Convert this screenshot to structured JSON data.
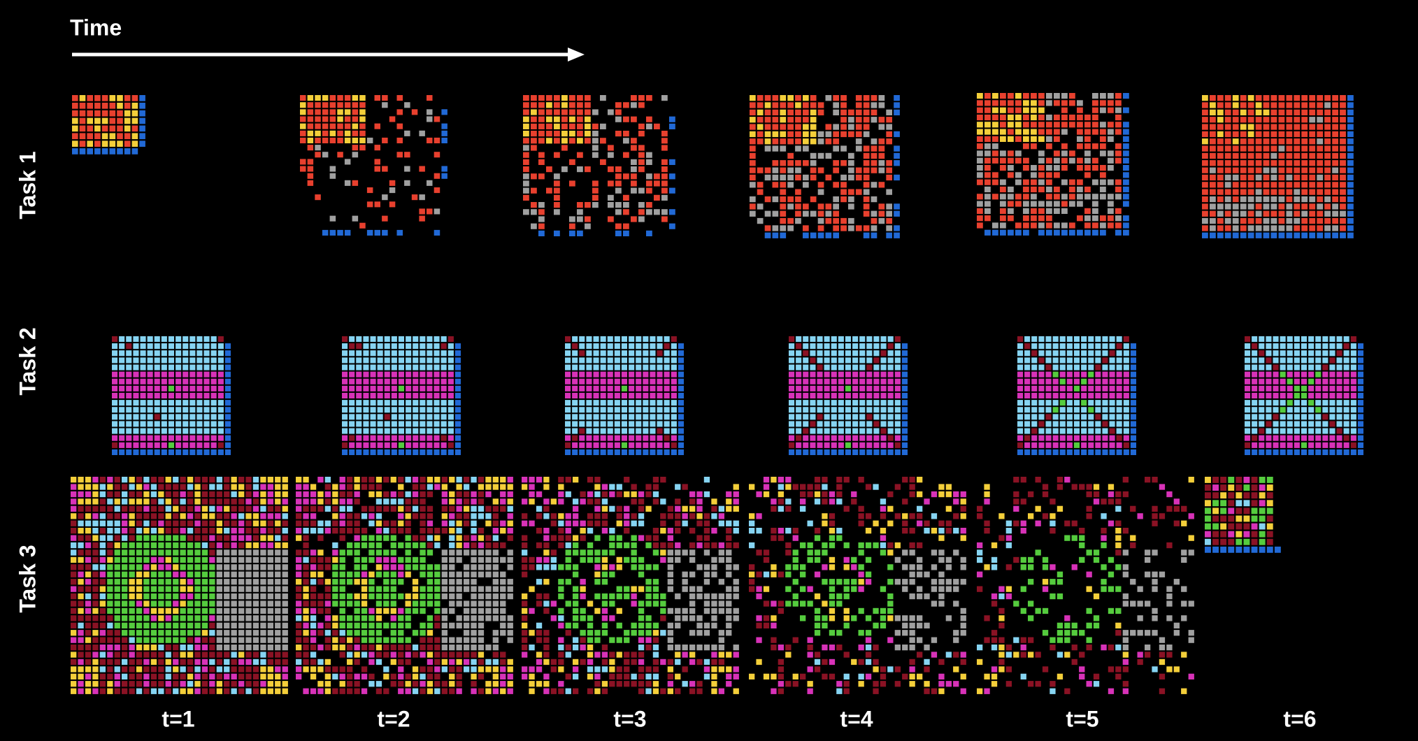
{
  "time_label": "Time",
  "rows": [
    {
      "label": "Task 1"
    },
    {
      "label": "Task 2"
    },
    {
      "label": "Task 3"
    }
  ],
  "columns": [
    "t=1",
    "t=2",
    "t=3",
    "t=4",
    "t=5",
    "t=6"
  ]
}
